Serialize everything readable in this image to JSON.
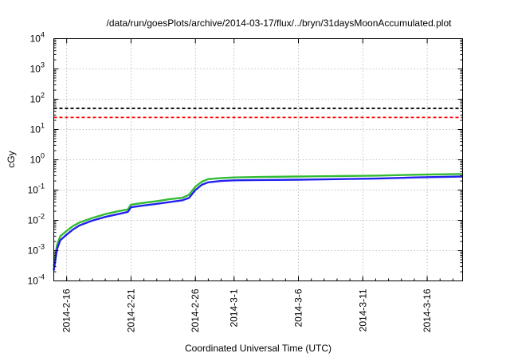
{
  "chart_data": {
    "type": "line",
    "title": "/data/run/goesPlots/archive/2014-03-17/flux/../bryn/31daysMoonAccumulated.plot",
    "xlabel": "Coordinated Universal Time (UTC)",
    "ylabel": "cGy",
    "yscale": "log",
    "ylim": [
      0.0001,
      10000
    ],
    "xlim": [
      "2014-02-15",
      "2014-03-18T18:00"
    ],
    "grid": true,
    "legend": "none",
    "y_ticks": [
      {
        "value": 0.0001,
        "base": "10",
        "exp": "-4"
      },
      {
        "value": 0.001,
        "base": "10",
        "exp": "-3"
      },
      {
        "value": 0.01,
        "base": "10",
        "exp": "-2"
      },
      {
        "value": 0.1,
        "base": "10",
        "exp": "-1"
      },
      {
        "value": 1,
        "base": "10",
        "exp": "0"
      },
      {
        "value": 10,
        "base": "10",
        "exp": "1"
      },
      {
        "value": 100,
        "base": "10",
        "exp": "2"
      },
      {
        "value": 1000,
        "base": "10",
        "exp": "3"
      },
      {
        "value": 10000,
        "base": "10",
        "exp": "4"
      }
    ],
    "x_ticks": [
      {
        "date": "2014-02-16",
        "label": "2014-2-16"
      },
      {
        "date": "2014-02-21",
        "label": "2014-2-21"
      },
      {
        "date": "2014-02-26",
        "label": "2014-2-26"
      },
      {
        "date": "2014-03-01",
        "label": "2014-3-1"
      },
      {
        "date": "2014-03-06",
        "label": "2014-3-6"
      },
      {
        "date": "2014-03-11",
        "label": "2014-3-11"
      },
      {
        "date": "2014-03-16",
        "label": "2014-3-16"
      }
    ],
    "reference_lines": [
      {
        "y": 50,
        "color": "#000000",
        "style": "dashed"
      },
      {
        "y": 25,
        "color": "#ff0000",
        "style": "dashed"
      }
    ],
    "series": [
      {
        "color": "#33bb33",
        "x": [
          "2014-02-15T00:00",
          "2014-02-15T06:00",
          "2014-02-15T12:00",
          "2014-02-16T00:00",
          "2014-02-16T12:00",
          "2014-02-17T00:00",
          "2014-02-18T00:00",
          "2014-02-19T00:00",
          "2014-02-20T00:00",
          "2014-02-20T18:00",
          "2014-02-21T00:00",
          "2014-02-22T00:00",
          "2014-02-23T00:00",
          "2014-02-24T00:00",
          "2014-02-25T00:00",
          "2014-02-25T12:00",
          "2014-02-26T00:00",
          "2014-02-26T12:00",
          "2014-02-27T00:00",
          "2014-02-28T00:00",
          "2014-03-01T00:00",
          "2014-03-03T00:00",
          "2014-03-06T00:00",
          "2014-03-09T00:00",
          "2014-03-12T00:00",
          "2014-03-15T00:00",
          "2014-03-18T18:00"
        ],
        "y": [
          0.0003,
          0.0015,
          0.003,
          0.0045,
          0.0065,
          0.0085,
          0.012,
          0.016,
          0.02,
          0.023,
          0.033,
          0.038,
          0.043,
          0.05,
          0.056,
          0.07,
          0.13,
          0.19,
          0.23,
          0.25,
          0.26,
          0.27,
          0.28,
          0.29,
          0.3,
          0.32,
          0.34
        ]
      },
      {
        "color": "#2222ee",
        "x": [
          "2014-02-15T00:00",
          "2014-02-15T06:00",
          "2014-02-15T12:00",
          "2014-02-16T00:00",
          "2014-02-16T12:00",
          "2014-02-17T00:00",
          "2014-02-18T00:00",
          "2014-02-19T00:00",
          "2014-02-20T00:00",
          "2014-02-20T18:00",
          "2014-02-21T00:00",
          "2014-02-22T00:00",
          "2014-02-23T00:00",
          "2014-02-24T00:00",
          "2014-02-25T00:00",
          "2014-02-25T12:00",
          "2014-02-26T00:00",
          "2014-02-26T12:00",
          "2014-02-27T00:00",
          "2014-02-28T00:00",
          "2014-03-01T00:00",
          "2014-03-03T00:00",
          "2014-03-06T00:00",
          "2014-03-09T00:00",
          "2014-03-12T00:00",
          "2014-03-15T00:00",
          "2014-03-18T18:00"
        ],
        "y": [
          0.00022,
          0.0011,
          0.0022,
          0.0034,
          0.005,
          0.0068,
          0.0098,
          0.013,
          0.016,
          0.019,
          0.027,
          0.031,
          0.035,
          0.04,
          0.046,
          0.055,
          0.1,
          0.15,
          0.18,
          0.2,
          0.21,
          0.215,
          0.22,
          0.23,
          0.24,
          0.26,
          0.28
        ]
      }
    ]
  }
}
